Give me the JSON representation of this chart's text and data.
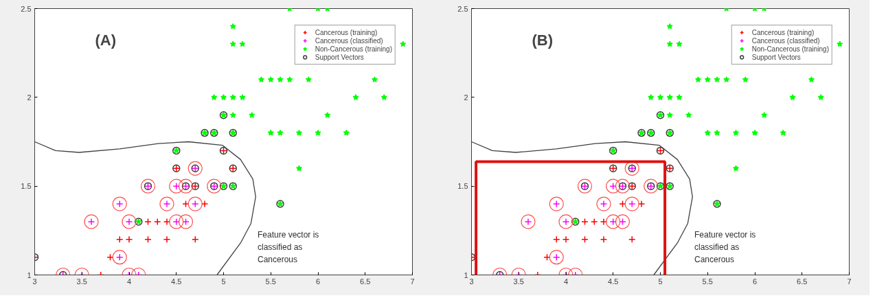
{
  "chart_data": [
    {
      "type": "scatter",
      "title": "(A)",
      "xlim": [
        3,
        7
      ],
      "ylim": [
        1,
        2.5
      ],
      "xticks": [
        3,
        3.5,
        4,
        4.5,
        5,
        5.5,
        6,
        6.5,
        7
      ],
      "yticks": [
        1,
        1.5,
        2,
        2.5
      ],
      "grid": false,
      "legend": "top right",
      "annotations": [
        "Feature vector is classified as Cancerous"
      ],
      "series": [
        {
          "name": "Cancerous (training)",
          "color": "#ff0000",
          "marker": "cross",
          "x": [
            3.7,
            3.8,
            3.9,
            4.0,
            4.2,
            4.4,
            4.7,
            4.2,
            4.3,
            4.4,
            4.6,
            4.8,
            3.0,
            4.7,
            4.5,
            5.1,
            5.0
          ],
          "values": [
            1.0,
            1.1,
            1.2,
            1.2,
            1.2,
            1.2,
            1.2,
            1.3,
            1.3,
            1.3,
            1.4,
            1.4,
            1.1,
            1.5,
            1.6,
            1.6,
            1.7
          ]
        },
        {
          "name": "Cancerous (classified)",
          "color": "#ff00ff",
          "marker": "cross",
          "x": [
            3.3,
            3.5,
            4.0,
            4.1,
            3.9,
            3.6,
            4.0,
            4.5,
            4.6,
            3.9,
            4.4,
            4.7,
            4.2,
            4.5,
            4.6,
            4.9,
            4.7
          ],
          "values": [
            1.0,
            1.0,
            1.0,
            1.0,
            1.1,
            1.3,
            1.3,
            1.3,
            1.3,
            1.4,
            1.4,
            1.4,
            1.5,
            1.5,
            1.5,
            1.5,
            1.6
          ]
        },
        {
          "name": "Non-Cancerous (training)",
          "color": "#00ff00",
          "marker": "star",
          "x": [
            4.1,
            5.6,
            5.0,
            5.1,
            4.5,
            5.8,
            4.8,
            4.9,
            5.1,
            5.5,
            5.6,
            5.8,
            6.0,
            6.3,
            5.0,
            5.1,
            5.3,
            6.1,
            4.9,
            5.0,
            5.1,
            5.2,
            6.4,
            6.7,
            5.4,
            5.5,
            5.6,
            5.7,
            5.9,
            6.6,
            5.1,
            5.2,
            6.9,
            5.1,
            5.7,
            6.0,
            6.1
          ],
          "values": [
            1.3,
            1.4,
            1.5,
            1.5,
            1.7,
            1.6,
            1.8,
            1.8,
            1.8,
            1.8,
            1.8,
            1.8,
            1.8,
            1.8,
            1.9,
            1.9,
            1.9,
            1.9,
            2.0,
            2.0,
            2.0,
            2.0,
            2.0,
            2.0,
            2.1,
            2.1,
            2.1,
            2.1,
            2.1,
            2.1,
            2.3,
            2.3,
            2.3,
            2.4,
            2.5,
            2.5,
            2.5
          ]
        },
        {
          "name": "Support Vectors",
          "color": "#404040",
          "marker": "circle",
          "x": [
            3.3,
            3.0,
            4.1,
            4.2,
            4.6,
            4.7,
            4.9,
            5.0,
            5.1,
            4.5,
            4.7,
            5.1,
            4.5,
            5.0,
            4.8,
            4.9,
            5.1,
            5.0,
            5.6
          ],
          "values": [
            1.0,
            1.1,
            1.3,
            1.5,
            1.5,
            1.5,
            1.5,
            1.5,
            1.5,
            1.6,
            1.6,
            1.6,
            1.7,
            1.7,
            1.8,
            1.8,
            1.8,
            1.9,
            1.4
          ]
        },
        {
          "type": "line",
          "color": "#404040",
          "marker": "none",
          "x": [
            3.0,
            3.22,
            3.47,
            3.9,
            4.31,
            4.63,
            4.99,
            5.18,
            5.31,
            5.34,
            5.29,
            5.18,
            4.93
          ],
          "values": [
            1.75,
            1.7,
            1.69,
            1.71,
            1.74,
            1.75,
            1.73,
            1.65,
            1.54,
            1.44,
            1.29,
            1.18,
            1.0
          ]
        }
      ]
    },
    {
      "type": "scatter",
      "title": "(B)",
      "xlim": [
        3,
        7
      ],
      "ylim": [
        1,
        2.5
      ],
      "xticks": [
        3,
        3.5,
        4,
        4.5,
        5,
        5.5,
        6,
        6.5,
        7
      ],
      "yticks": [
        1,
        1.5,
        2,
        2.5
      ],
      "grid": false,
      "legend": "top right",
      "annotations": [
        "Feature vector is classified as Cancerous"
      ],
      "series": [
        {
          "name": "Cancerous (training)",
          "color": "#ff0000",
          "marker": "cross",
          "x": [
            3.7,
            3.8,
            3.9,
            4.0,
            4.2,
            4.4,
            4.7,
            4.2,
            4.3,
            4.4,
            4.6,
            4.8,
            3.0,
            4.7,
            4.5,
            5.1,
            5.0
          ],
          "values": [
            1.0,
            1.1,
            1.2,
            1.2,
            1.2,
            1.2,
            1.2,
            1.3,
            1.3,
            1.3,
            1.4,
            1.4,
            1.1,
            1.5,
            1.6,
            1.6,
            1.7
          ]
        },
        {
          "name": "Cancerous (classified)",
          "color": "#ff00ff",
          "marker": "cross",
          "x": [
            3.3,
            3.5,
            4.0,
            4.1,
            3.9,
            3.6,
            4.0,
            4.5,
            4.6,
            3.9,
            4.4,
            4.7,
            4.2,
            4.5,
            4.6,
            4.9,
            4.7
          ],
          "values": [
            1.0,
            1.0,
            1.0,
            1.0,
            1.1,
            1.3,
            1.3,
            1.3,
            1.3,
            1.4,
            1.4,
            1.4,
            1.5,
            1.5,
            1.5,
            1.5,
            1.6
          ]
        },
        {
          "name": "Non-Cancerous (training)",
          "color": "#00ff00",
          "marker": "star",
          "x": [
            4.1,
            5.6,
            5.0,
            5.1,
            4.5,
            5.8,
            4.8,
            4.9,
            5.1,
            5.5,
            5.6,
            5.8,
            6.0,
            6.3,
            5.0,
            5.1,
            5.3,
            6.1,
            4.9,
            5.0,
            5.1,
            5.2,
            6.4,
            6.7,
            5.4,
            5.5,
            5.6,
            5.7,
            5.9,
            6.6,
            5.1,
            5.2,
            6.9,
            5.1,
            5.7,
            6.0,
            6.1
          ],
          "values": [
            1.3,
            1.4,
            1.5,
            1.5,
            1.7,
            1.6,
            1.8,
            1.8,
            1.8,
            1.8,
            1.8,
            1.8,
            1.8,
            1.8,
            1.9,
            1.9,
            1.9,
            1.9,
            2.0,
            2.0,
            2.0,
            2.0,
            2.0,
            2.0,
            2.1,
            2.1,
            2.1,
            2.1,
            2.1,
            2.1,
            2.3,
            2.3,
            2.3,
            2.4,
            2.5,
            2.5,
            2.5
          ]
        },
        {
          "name": "Support Vectors",
          "color": "#404040",
          "marker": "circle",
          "x": [
            3.3,
            3.0,
            4.1,
            4.2,
            4.6,
            4.7,
            4.9,
            5.0,
            5.1,
            4.5,
            4.7,
            5.1,
            4.5,
            5.0,
            4.8,
            4.9,
            5.1,
            5.0,
            5.6
          ],
          "values": [
            1.0,
            1.1,
            1.3,
            1.5,
            1.5,
            1.5,
            1.5,
            1.5,
            1.5,
            1.6,
            1.6,
            1.6,
            1.7,
            1.7,
            1.8,
            1.8,
            1.8,
            1.9,
            1.4
          ]
        },
        {
          "type": "line",
          "color": "#404040",
          "marker": "none",
          "x": [
            3.0,
            3.22,
            3.47,
            3.9,
            4.31,
            4.63,
            4.99,
            5.18,
            5.31,
            5.34,
            5.29,
            5.18,
            4.93
          ],
          "values": [
            1.75,
            1.7,
            1.69,
            1.71,
            1.74,
            1.75,
            1.73,
            1.65,
            1.54,
            1.44,
            1.29,
            1.18,
            1.0
          ]
        }
      ]
    }
  ]
}
